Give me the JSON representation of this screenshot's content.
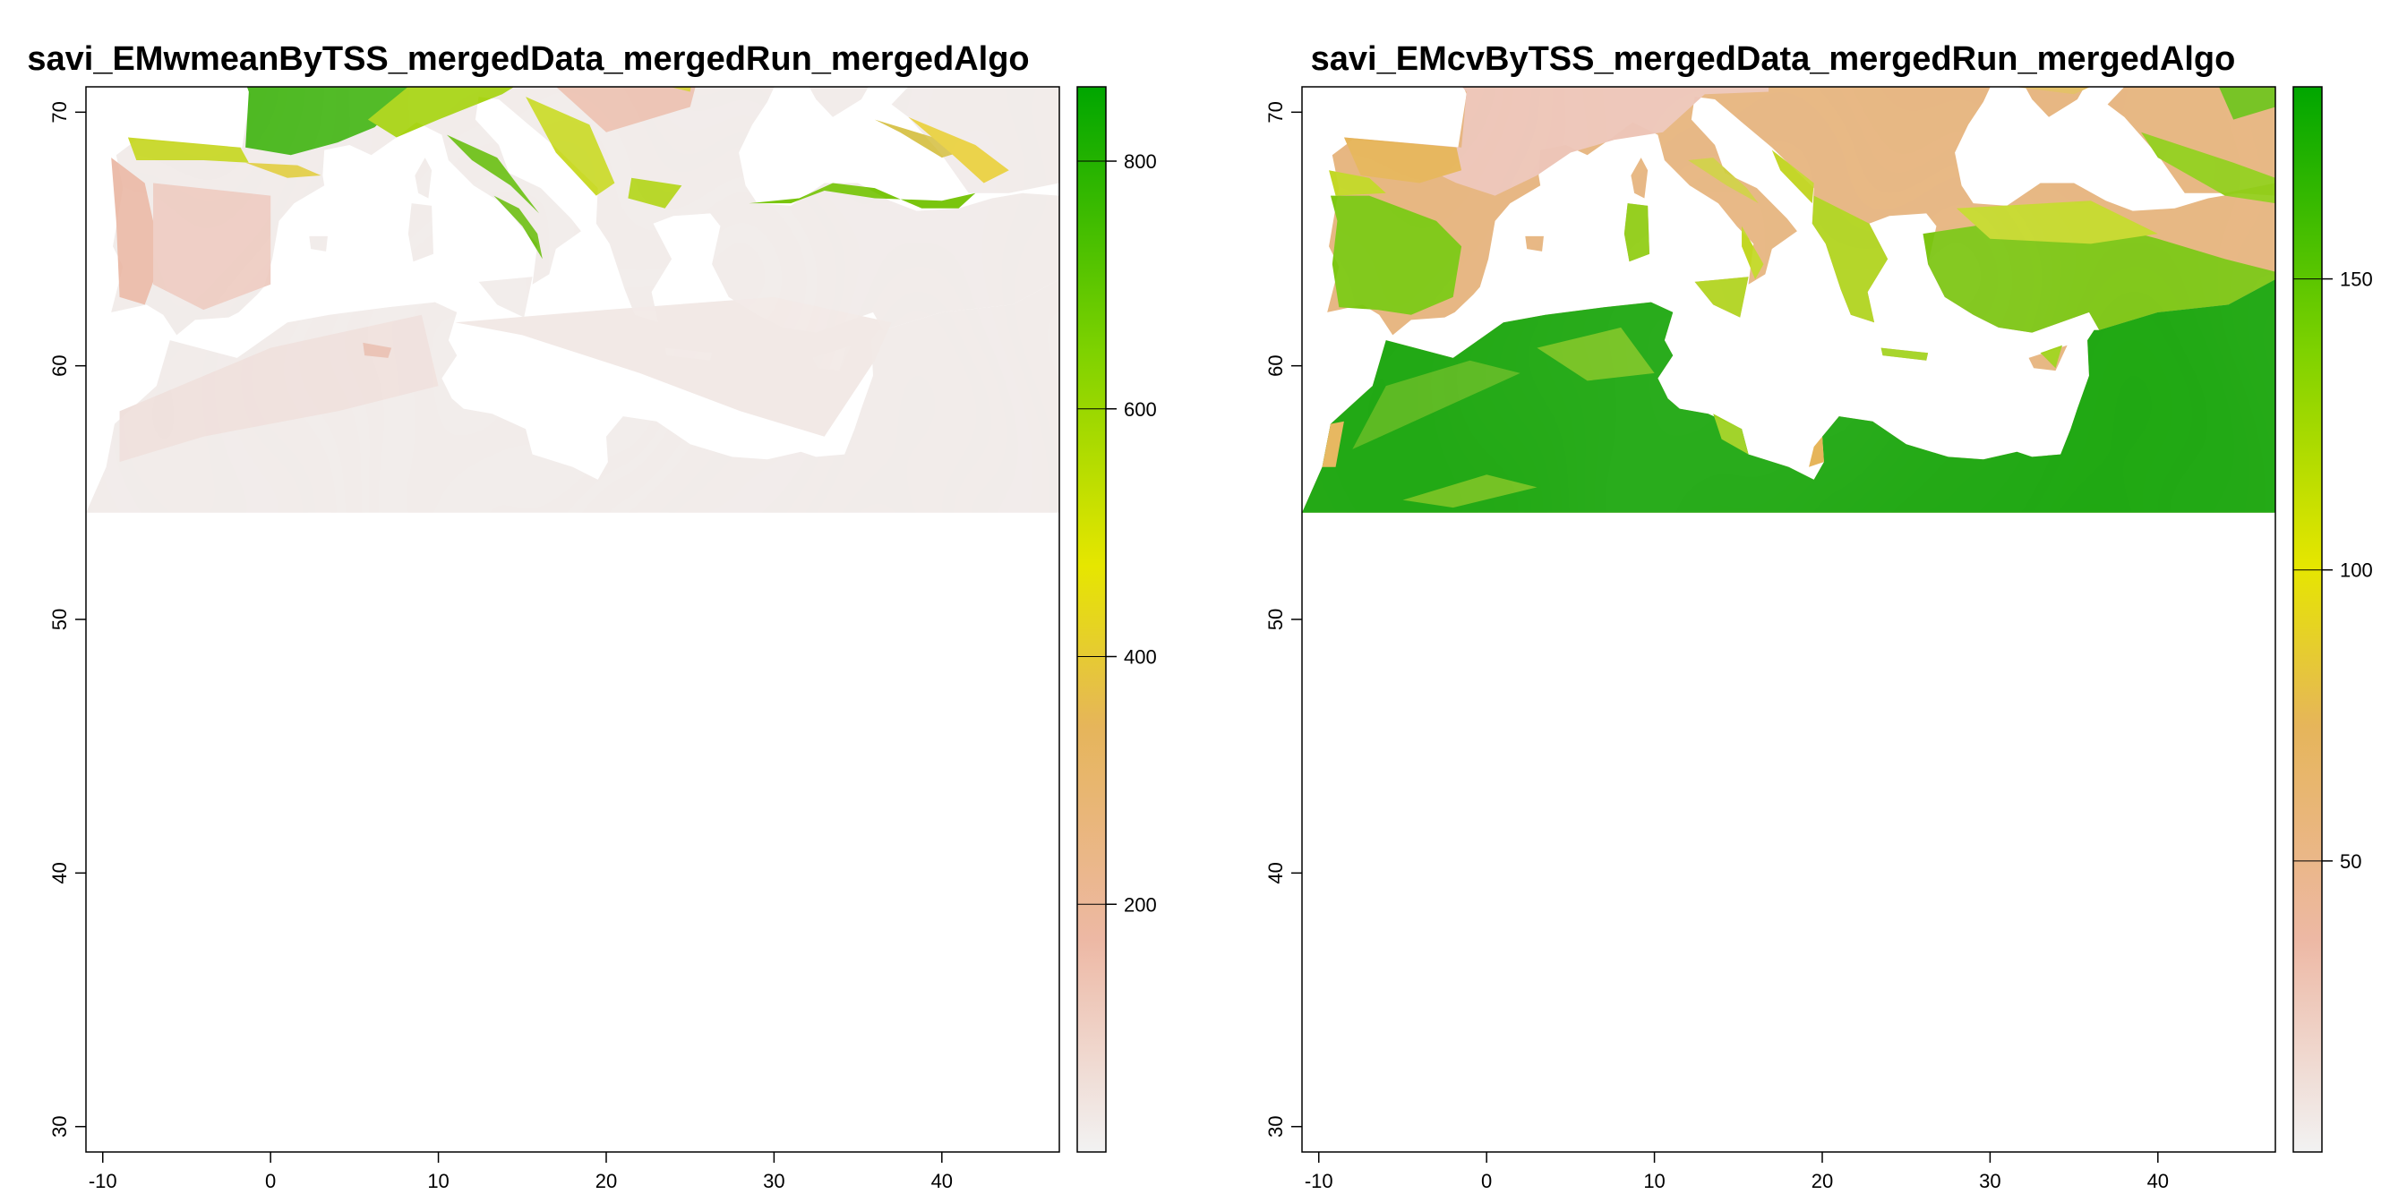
{
  "figure": {
    "panels": [
      {
        "id": "mean",
        "title": "savi_EMwmeanByTSS_mergedData_mergedRun_mergedAlgo",
        "x_ticks": [
          "-10",
          "0",
          "10",
          "20",
          "30",
          "40"
        ],
        "y_ticks": [
          "30",
          "40",
          "50",
          "60",
          "70"
        ],
        "legend_ticks": [
          "200",
          "400",
          "600",
          "800"
        ],
        "legend_range": [
          0,
          860
        ]
      },
      {
        "id": "cv",
        "title": "savi_EMcvByTSS_mergedData_mergedRun_mergedAlgo",
        "x_ticks": [
          "-10",
          "0",
          "10",
          "20",
          "30",
          "40"
        ],
        "y_ticks": [
          "30",
          "40",
          "50",
          "60",
          "70"
        ],
        "legend_ticks": [
          "50",
          "100",
          "150"
        ],
        "legend_range": [
          0,
          183
        ]
      }
    ],
    "extent": {
      "lon": [
        -11,
        47
      ],
      "lat": [
        29,
        71
      ]
    },
    "colors": {
      "low": "#f2f2f2",
      "pink": "#edb8a4",
      "orange": "#e6b55a",
      "yellow": "#e6e600",
      "lightgreen": "#7fd200",
      "green": "#00a600"
    }
  }
}
